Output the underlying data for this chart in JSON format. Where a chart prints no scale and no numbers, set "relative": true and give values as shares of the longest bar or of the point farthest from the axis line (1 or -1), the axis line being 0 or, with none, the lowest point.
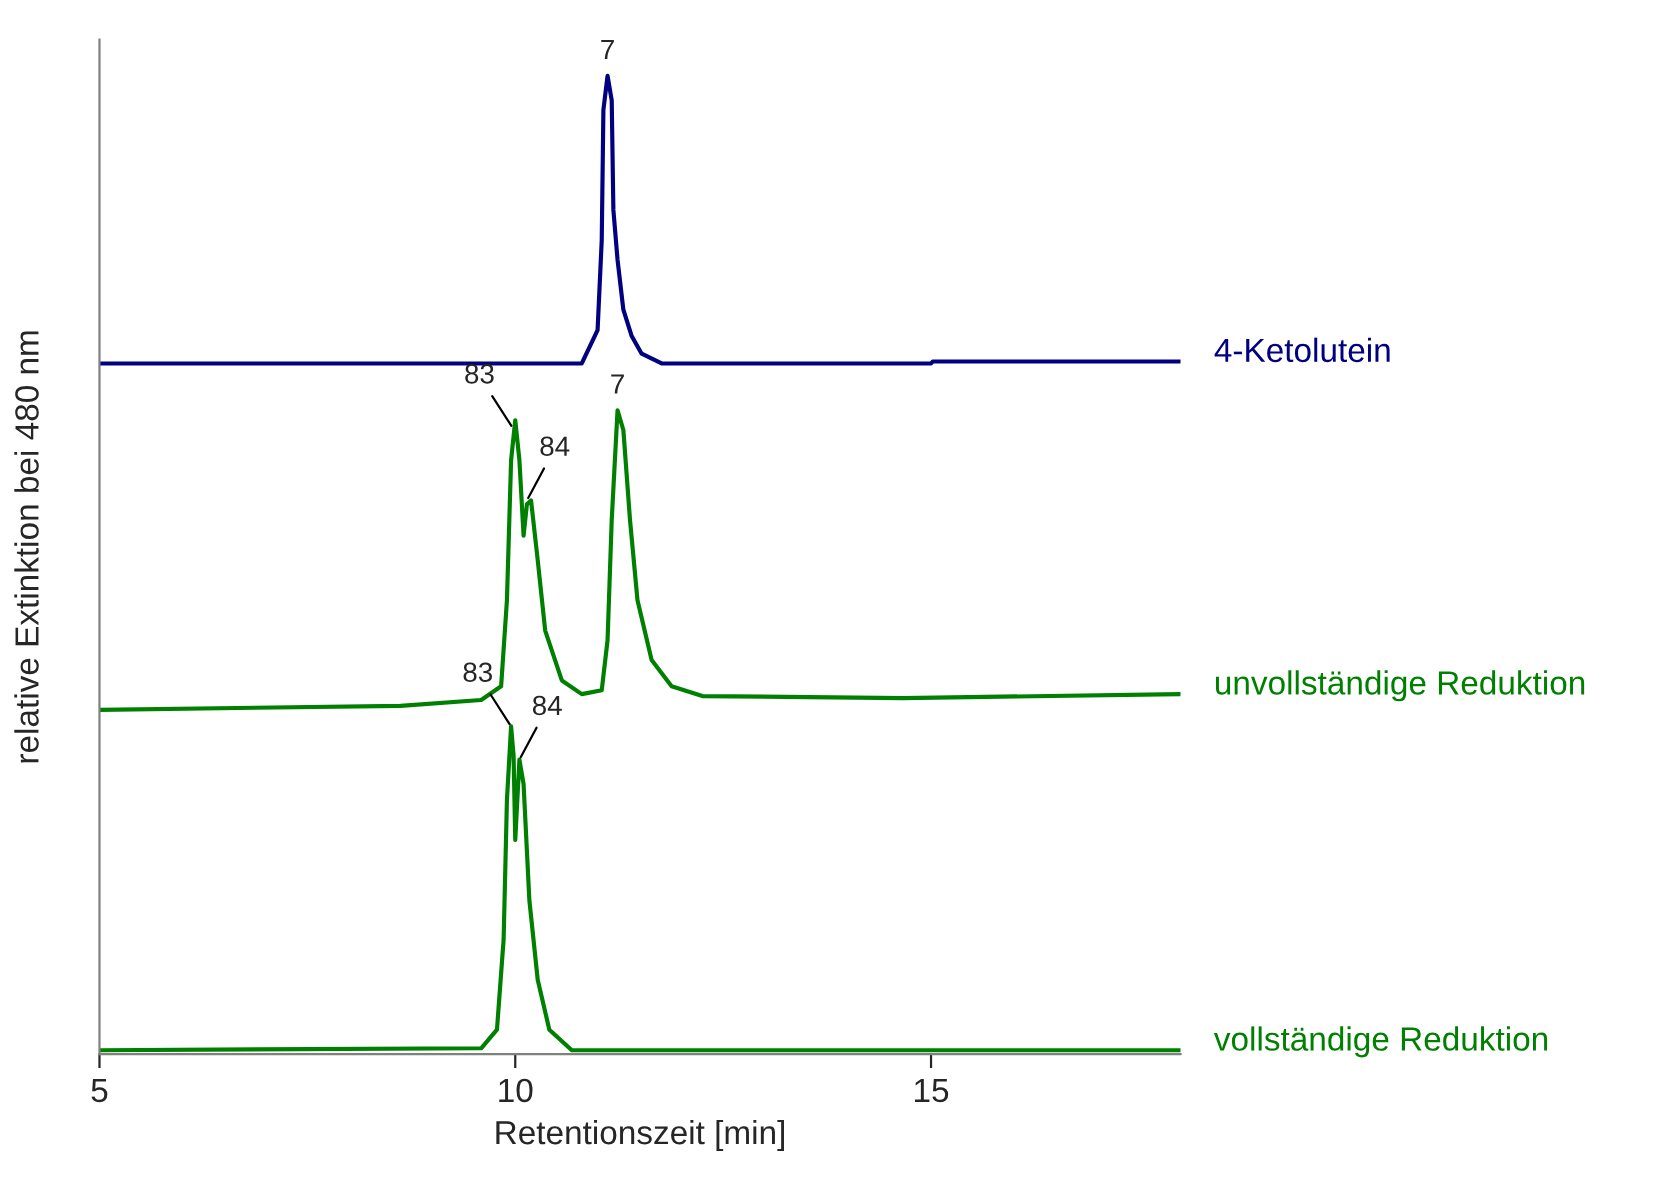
{
  "chart_data": {
    "type": "line",
    "relative": true,
    "xlabel": "Retentionszeit [min]",
    "ylabel": "relative Extinktion bei 480 nm",
    "xlim": [
      5,
      18
    ],
    "xticks": [
      5,
      10,
      15
    ],
    "grid": false,
    "legend": false,
    "marker": "none",
    "line_style": "solid",
    "series": [
      {
        "name": "4-Ketolutein",
        "color": "#000080",
        "x": [
          5.0,
          10.8,
          10.99,
          11.04,
          11.06,
          11.11,
          11.16,
          11.18,
          11.23,
          11.3,
          11.4,
          11.52,
          11.76,
          15.0,
          15.02,
          18.0
        ],
        "values": [
          0.706,
          0.706,
          0.74,
          0.832,
          0.965,
          1.0,
          0.975,
          0.863,
          0.812,
          0.761,
          0.734,
          0.716,
          0.706,
          0.706,
          0.708,
          0.708
        ]
      },
      {
        "name": "unvollständige Reduktion",
        "color": "#008000",
        "x": [
          5.0,
          8.62,
          9.59,
          9.83,
          9.9,
          9.95,
          10.0,
          10.05,
          10.1,
          10.14,
          10.19,
          10.27,
          10.36,
          10.56,
          10.8,
          11.04,
          11.11,
          11.16,
          11.23,
          11.3,
          11.38,
          11.47,
          11.64,
          11.88,
          12.25,
          14.66,
          18.0
        ],
        "values": [
          0.352,
          0.356,
          0.362,
          0.376,
          0.464,
          0.607,
          0.648,
          0.607,
          0.53,
          0.562,
          0.566,
          0.505,
          0.433,
          0.382,
          0.368,
          0.372,
          0.423,
          0.546,
          0.658,
          0.638,
          0.546,
          0.464,
          0.403,
          0.376,
          0.366,
          0.364,
          0.368
        ]
      },
      {
        "name": "vollständige Reduktion",
        "color": "#008000",
        "x": [
          5.0,
          9.59,
          9.78,
          9.86,
          9.9,
          9.95,
          9.98,
          10.0,
          10.05,
          10.1,
          10.17,
          10.27,
          10.41,
          10.68,
          18.0
        ],
        "values": [
          0.004,
          0.006,
          0.025,
          0.117,
          0.26,
          0.335,
          0.305,
          0.219,
          0.301,
          0.276,
          0.157,
          0.076,
          0.025,
          0.004,
          0.004
        ]
      }
    ],
    "annotations": [
      {
        "text": "7",
        "x": 11.11,
        "y": 1.0
      },
      {
        "text": "83",
        "x": 9.97,
        "y": 0.64
      },
      {
        "text": "84",
        "x": 10.14,
        "y": 0.566
      },
      {
        "text": "7",
        "x": 11.23,
        "y": 0.658
      },
      {
        "text": "83",
        "x": 9.95,
        "y": 0.335
      },
      {
        "text": "84",
        "x": 10.05,
        "y": 0.301
      }
    ]
  }
}
